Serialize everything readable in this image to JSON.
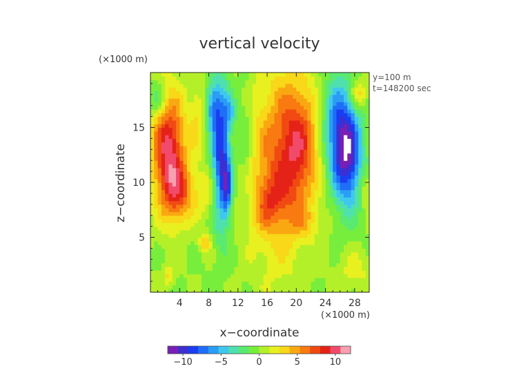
{
  "chart_data": {
    "type": "heatmap",
    "title": "vertical velocity",
    "xlabel": "x−coordinate",
    "ylabel": "z−coordinate",
    "x_unit": "(×1000 m)",
    "y_unit": "(×1000 m)",
    "annotations": [
      "y=100 m",
      "t=148200 sec"
    ],
    "xlim": [
      0,
      30
    ],
    "ylim": [
      0,
      20
    ],
    "x_ticks": [
      4,
      8,
      12,
      16,
      20,
      24,
      28
    ],
    "y_ticks": [
      5,
      10,
      15
    ],
    "x_tick_labels": [
      "4",
      "8",
      "12",
      "16",
      "20",
      "24",
      "28"
    ],
    "y_tick_labels": [
      "5",
      "10",
      "15"
    ],
    "colorbar": {
      "range": [
        -12,
        12
      ],
      "ticks": [
        -10,
        -5,
        0,
        5,
        10
      ],
      "tick_labels": [
        "−10",
        "−5",
        "0",
        "5",
        "10"
      ],
      "colors": [
        "#7a1fb5",
        "#3d2fd0",
        "#1a3df0",
        "#1f6ef7",
        "#2a9df5",
        "#3fc8ee",
        "#4fe0b0",
        "#5aea70",
        "#78ee3c",
        "#b4f029",
        "#e8f020",
        "#f8d818",
        "#faa812",
        "#f87a10",
        "#f04a12",
        "#e52218",
        "#f24a6a",
        "#f7a0b0"
      ]
    },
    "features": [
      {
        "x": 2.5,
        "z": 13.0,
        "sx": 1.6,
        "sz": 3.6,
        "value": 10.0
      },
      {
        "x": 4.0,
        "z": 9.0,
        "sx": 1.5,
        "sz": 1.8,
        "value": 5.5
      },
      {
        "x": 1.0,
        "z": 17.5,
        "sx": 1.0,
        "sz": 1.2,
        "value": -3.5
      },
      {
        "x": 6.5,
        "z": 16.0,
        "sx": 0.8,
        "sz": 2.5,
        "value": 2.5
      },
      {
        "x": 8.0,
        "z": 9.0,
        "sx": 1.2,
        "sz": 1.5,
        "value": 2.5
      },
      {
        "x": 9.7,
        "z": 12.5,
        "sx": 0.9,
        "sz": 4.5,
        "value": -9.5
      },
      {
        "x": 10.5,
        "z": 9.5,
        "sx": 0.45,
        "sz": 1.6,
        "value": -6.0
      },
      {
        "x": 8.5,
        "z": 17.0,
        "sx": 0.7,
        "sz": 1.5,
        "value": -5.0
      },
      {
        "x": 11.0,
        "z": 16.5,
        "sx": 0.6,
        "sz": 1.0,
        "value": -3.0
      },
      {
        "x": 13.0,
        "z": 14.0,
        "sx": 0.7,
        "sz": 4.0,
        "value": -2.0
      },
      {
        "x": 7.5,
        "z": 4.5,
        "sx": 0.6,
        "sz": 0.6,
        "value": 3.5
      },
      {
        "x": 2.5,
        "z": 1.5,
        "sx": 0.5,
        "sz": 0.6,
        "value": 3.0
      },
      {
        "x": 17.5,
        "z": 11.5,
        "sx": 2.8,
        "sz": 6.0,
        "value": 6.0
      },
      {
        "x": 20.5,
        "z": 13.5,
        "sx": 1.8,
        "sz": 3.8,
        "value": 6.0
      },
      {
        "x": 16.5,
        "z": 8.5,
        "sx": 1.5,
        "sz": 1.6,
        "value": 3.0
      },
      {
        "x": 21.0,
        "z": 6.5,
        "sx": 1.5,
        "sz": 1.0,
        "value": 2.0
      },
      {
        "x": 27.0,
        "z": 12.5,
        "sx": 1.4,
        "sz": 3.2,
        "value": -10.5
      },
      {
        "x": 25.5,
        "z": 15.5,
        "sx": 1.4,
        "sz": 3.2,
        "value": -5.0
      },
      {
        "x": 28.5,
        "z": 18.0,
        "sx": 0.8,
        "sz": 0.9,
        "value": 4.0
      },
      {
        "x": 29.5,
        "z": 9.5,
        "sx": 0.6,
        "sz": 1.2,
        "value": 2.5
      },
      {
        "x": 28.0,
        "z": 2.0,
        "sx": 1.5,
        "sz": 1.2,
        "value": 2.0
      },
      {
        "x": 15.0,
        "z": 7.0,
        "sx": 1.0,
        "sz": 1.0,
        "value": 1.0
      }
    ]
  }
}
